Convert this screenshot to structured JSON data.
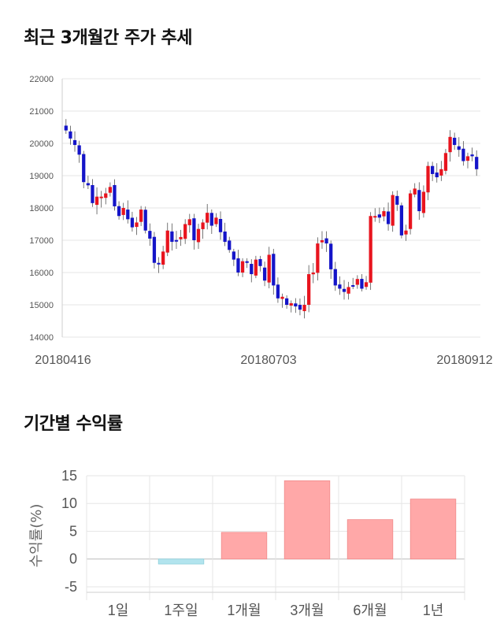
{
  "sections": {
    "price_title": "최근 3개월간 주가 추세",
    "return_title": "기간별 수익률"
  },
  "chart_data": [
    {
      "type": "candlestick",
      "title": "최근 3개월간 주가 추세",
      "ylim": [
        14000,
        22000
      ],
      "yticks": [
        14000,
        15000,
        16000,
        17000,
        18000,
        19000,
        20000,
        21000,
        22000
      ],
      "xtick_labels": [
        "20180416",
        "20180703",
        "20180912"
      ],
      "grid": true,
      "up_color": "#e8141e",
      "down_color": "#1414c8",
      "close_series": [
        20400,
        20150,
        19950,
        19650,
        18800,
        18700,
        18150,
        18350,
        18350,
        18450,
        18650,
        18050,
        17750,
        18000,
        17650,
        17400,
        17550,
        17950,
        17300,
        17050,
        16300,
        16250,
        16650,
        17300,
        16950,
        17000,
        17100,
        17500,
        17650,
        17000,
        17350,
        17550,
        17850,
        17450,
        17700,
        17250,
        16950,
        16700,
        16400,
        16000,
        16350,
        16300,
        15950,
        16400,
        16200,
        15750,
        16550,
        15600,
        15200,
        15250,
        15000,
        15050,
        14950,
        14850,
        15000,
        15950,
        16000,
        16900,
        17000,
        16900,
        16100,
        15600,
        15500,
        15400,
        15550,
        15600,
        15800,
        15500,
        15700,
        17750,
        17750,
        17700,
        17900,
        17500,
        18400,
        18100,
        17150,
        17300,
        18450,
        18600,
        17900,
        18500,
        19300,
        19050,
        18950,
        19200,
        19700,
        20200,
        19950,
        19800,
        19450,
        19600,
        19600,
        19200
      ]
    },
    {
      "type": "bar",
      "title": "기간별 수익률",
      "ylabel": "수익률(%)",
      "categories": [
        "1일",
        "1주일",
        "1개월",
        "3개월",
        "6개월",
        "1년"
      ],
      "values": [
        0,
        -0.9,
        4.8,
        14.1,
        7.1,
        10.8
      ],
      "ylim": [
        -6,
        15
      ],
      "yticks": [
        -5,
        0,
        5,
        10,
        15
      ],
      "grid": true,
      "positive_color": "#ffa8a8",
      "negative_color": "#b2e4ee"
    }
  ]
}
